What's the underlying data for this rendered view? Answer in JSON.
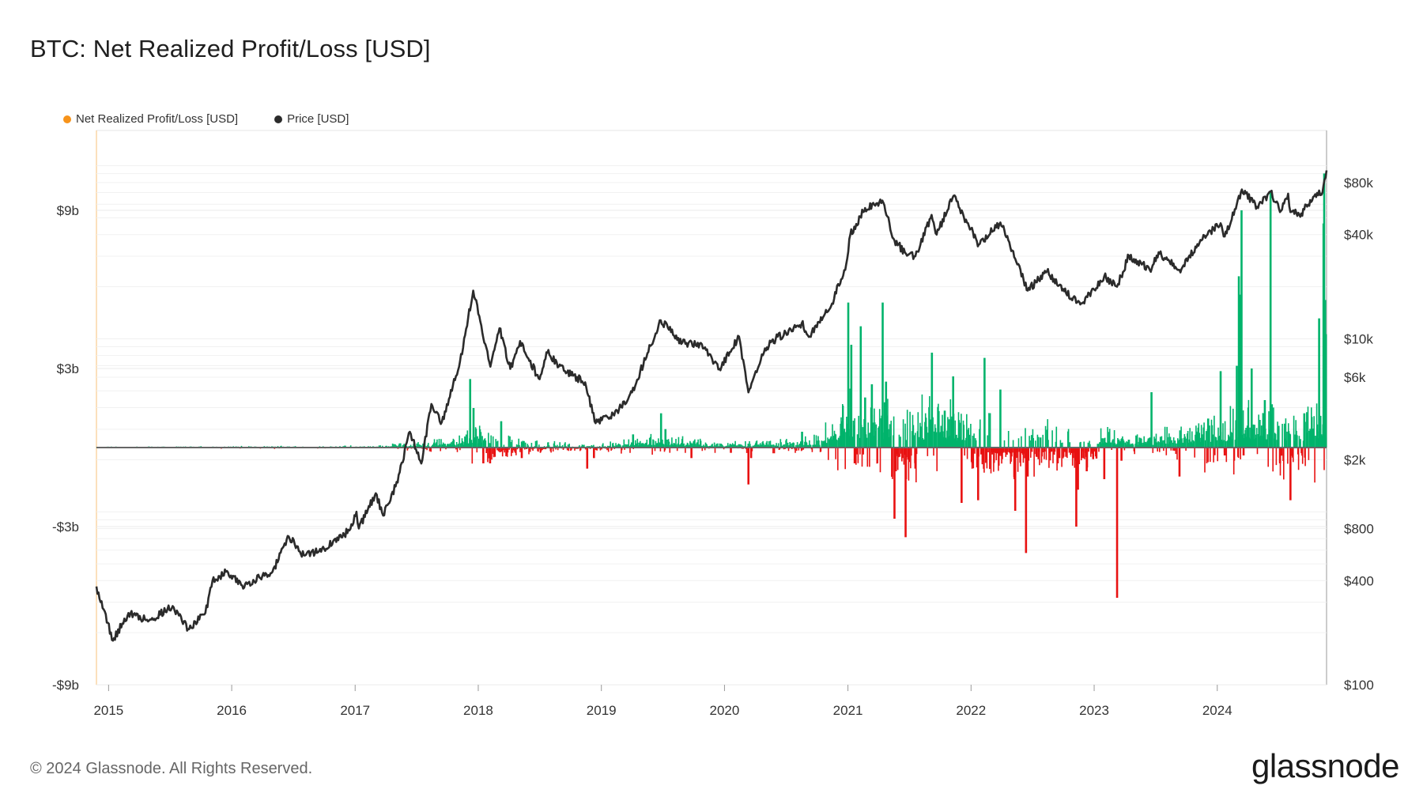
{
  "title": "BTC: Net Realized Profit/Loss [USD]",
  "legend": [
    {
      "label": "Net Realized Profit/Loss [USD]",
      "color": "#f7931a"
    },
    {
      "label": "Price [USD]",
      "color": "#2b2b2b"
    }
  ],
  "footer": "© 2024 Glassnode. All Rights Reserved.",
  "brand": "glassnode",
  "chart_data": {
    "type": "bar",
    "title": "BTC: Net Realized Profit/Loss [USD]",
    "x_range": [
      "2014-11-26",
      "2024-11-20"
    ],
    "x_ticks": [
      "2015",
      "2016",
      "2017",
      "2018",
      "2019",
      "2020",
      "2021",
      "2022",
      "2023",
      "2024"
    ],
    "left_axis": {
      "ticks": [
        9,
        3,
        -3,
        -9
      ],
      "tick_labels": [
        "$9b",
        "$3b",
        "-$3b",
        "-$9b"
      ],
      "range": [
        -9,
        12
      ],
      "unit": "billion USD"
    },
    "right_axis": {
      "scale": "log",
      "ticks": [
        100,
        400,
        800,
        2000,
        6000,
        10000,
        40000,
        80000
      ],
      "tick_labels": [
        "$100",
        "$400",
        "$800",
        "$2k",
        "$6k",
        "$10k",
        "$40k",
        "$80k"
      ],
      "range": [
        100,
        160000
      ]
    },
    "colors": {
      "profit": "#00b36b",
      "loss": "#e81111",
      "price": "#2b2b2b",
      "zero_line": "#666666"
    },
    "series": [
      {
        "name": "Price [USD]",
        "axis": "right",
        "type": "line",
        "points": [
          [
            "2014-11-26",
            370
          ],
          [
            "2015-01-14",
            180
          ],
          [
            "2015-03-01",
            260
          ],
          [
            "2015-05-01",
            235
          ],
          [
            "2015-07-10",
            285
          ],
          [
            "2015-08-25",
            210
          ],
          [
            "2015-10-15",
            260
          ],
          [
            "2015-11-05",
            400
          ],
          [
            "2015-12-15",
            450
          ],
          [
            "2016-02-01",
            375
          ],
          [
            "2016-05-01",
            450
          ],
          [
            "2016-06-18",
            720
          ],
          [
            "2016-08-02",
            560
          ],
          [
            "2016-10-01",
            610
          ],
          [
            "2016-12-15",
            780
          ],
          [
            "2017-01-05",
            1000
          ],
          [
            "2017-01-12",
            800
          ],
          [
            "2017-03-03",
            1280
          ],
          [
            "2017-03-25",
            950
          ],
          [
            "2017-05-01",
            1400
          ],
          [
            "2017-06-12",
            2900
          ],
          [
            "2017-07-16",
            1900
          ],
          [
            "2017-08-15",
            4200
          ],
          [
            "2017-09-15",
            3300
          ],
          [
            "2017-11-08",
            7400
          ],
          [
            "2017-12-17",
            19000
          ],
          [
            "2018-02-06",
            6900
          ],
          [
            "2018-03-05",
            11500
          ],
          [
            "2018-04-06",
            6700
          ],
          [
            "2018-05-05",
            9700
          ],
          [
            "2018-06-29",
            5900
          ],
          [
            "2018-07-25",
            8300
          ],
          [
            "2018-09-15",
            6500
          ],
          [
            "2018-11-14",
            5600
          ],
          [
            "2018-12-15",
            3250
          ],
          [
            "2019-02-08",
            3600
          ],
          [
            "2019-04-02",
            4900
          ],
          [
            "2019-06-26",
            12800
          ],
          [
            "2019-08-29",
            9500
          ],
          [
            "2019-10-26",
            9300
          ],
          [
            "2019-12-17",
            6700
          ],
          [
            "2020-02-13",
            10300
          ],
          [
            "2020-03-12",
            4900
          ],
          [
            "2020-04-30",
            8800
          ],
          [
            "2020-06-01",
            10000
          ],
          [
            "2020-08-17",
            12300
          ],
          [
            "2020-09-10",
            10300
          ],
          [
            "2020-11-15",
            16000
          ],
          [
            "2020-12-27",
            27000
          ],
          [
            "2021-01-08",
            40000
          ],
          [
            "2021-02-21",
            57000
          ],
          [
            "2021-04-13",
            63000
          ],
          [
            "2021-05-19",
            37000
          ],
          [
            "2021-06-22",
            31000
          ],
          [
            "2021-07-20",
            30000
          ],
          [
            "2021-09-06",
            52000
          ],
          [
            "2021-09-21",
            40000
          ],
          [
            "2021-11-10",
            67000
          ],
          [
            "2021-12-20",
            47000
          ],
          [
            "2022-01-24",
            35000
          ],
          [
            "2022-03-29",
            47000
          ],
          [
            "2022-05-12",
            29000
          ],
          [
            "2022-06-18",
            19000
          ],
          [
            "2022-08-14",
            24500
          ],
          [
            "2022-10-01",
            19400
          ],
          [
            "2022-11-21",
            15800
          ],
          [
            "2023-01-31",
            23000
          ],
          [
            "2023-03-10",
            20000
          ],
          [
            "2023-04-14",
            30300
          ],
          [
            "2023-06-15",
            25000
          ],
          [
            "2023-07-14",
            31000
          ],
          [
            "2023-09-11",
            25000
          ],
          [
            "2023-11-15",
            37000
          ],
          [
            "2024-01-11",
            46500
          ],
          [
            "2024-01-23",
            39000
          ],
          [
            "2024-03-14",
            73000
          ],
          [
            "2024-05-01",
            57000
          ],
          [
            "2024-06-07",
            71000
          ],
          [
            "2024-07-05",
            54000
          ],
          [
            "2024-07-29",
            69000
          ],
          [
            "2024-08-05",
            54000
          ],
          [
            "2024-09-06",
            53000
          ],
          [
            "2024-10-29",
            72000
          ],
          [
            "2024-11-05",
            68000
          ],
          [
            "2024-11-20",
            94000
          ]
        ]
      },
      {
        "name": "Net Realized Profit/Loss [USD]",
        "axis": "left",
        "type": "bar",
        "unit": "billion USD",
        "spikes": [
          [
            "2017-12-08",
            2.6
          ],
          [
            "2017-12-18",
            1.5
          ],
          [
            "2018-01-16",
            -0.6
          ],
          [
            "2018-02-05",
            -0.6
          ],
          [
            "2018-03-10",
            1.0
          ],
          [
            "2018-05-10",
            -0.4
          ],
          [
            "2018-11-20",
            -0.8
          ],
          [
            "2018-12-10",
            -0.4
          ],
          [
            "2019-04-05",
            0.5
          ],
          [
            "2019-06-27",
            1.3
          ],
          [
            "2019-07-10",
            0.7
          ],
          [
            "2019-09-25",
            -0.4
          ],
          [
            "2020-01-20",
            -0.2
          ],
          [
            "2020-03-12",
            -1.4
          ],
          [
            "2020-03-20",
            -0.4
          ],
          [
            "2020-08-18",
            0.6
          ],
          [
            "2020-11-25",
            0.5
          ],
          [
            "2020-12-16",
            1.0
          ],
          [
            "2021-01-02",
            5.5
          ],
          [
            "2021-01-11",
            3.9
          ],
          [
            "2021-01-21",
            -0.6
          ],
          [
            "2021-02-08",
            4.6
          ],
          [
            "2021-02-21",
            1.9
          ],
          [
            "2021-03-13",
            2.4
          ],
          [
            "2021-04-14",
            5.5
          ],
          [
            "2021-04-24",
            2.5
          ],
          [
            "2021-05-12",
            -1.1
          ],
          [
            "2021-05-19",
            -2.7
          ],
          [
            "2021-05-23",
            -0.9
          ],
          [
            "2021-06-22",
            -1.2
          ],
          [
            "2021-07-20",
            -0.8
          ],
          [
            "2021-06-21",
            -3.4
          ],
          [
            "2021-09-07",
            3.6
          ],
          [
            "2021-10-15",
            1.4
          ],
          [
            "2021-11-09",
            2.7
          ],
          [
            "2021-12-04",
            -2.1
          ],
          [
            "2022-01-22",
            -2.0
          ],
          [
            "2022-01-05",
            -0.6
          ],
          [
            "2022-02-10",
            3.4
          ],
          [
            "2022-03-29",
            2.2
          ],
          [
            "2022-05-10",
            -1.2
          ],
          [
            "2022-05-12",
            -2.4
          ],
          [
            "2022-06-13",
            -4.0
          ],
          [
            "2022-06-18",
            -1.1
          ],
          [
            "2022-07-19",
            0.4
          ],
          [
            "2022-09-15",
            -0.6
          ],
          [
            "2022-11-09",
            -3.0
          ],
          [
            "2022-11-14",
            -1.6
          ],
          [
            "2022-12-10",
            -0.9
          ],
          [
            "2023-01-31",
            -1.2
          ],
          [
            "2023-03-10",
            -5.7
          ],
          [
            "2023-03-23",
            -0.5
          ],
          [
            "2023-04-14",
            0.3
          ],
          [
            "2023-06-20",
            2.1
          ],
          [
            "2023-09-11",
            -1.1
          ],
          [
            "2023-12-05",
            1.1
          ],
          [
            "2024-01-11",
            2.9
          ],
          [
            "2024-01-23",
            -0.3
          ],
          [
            "2024-02-28",
            3.1
          ],
          [
            "2024-03-05",
            6.5
          ],
          [
            "2024-03-08",
            5.8
          ],
          [
            "2024-03-13",
            9.0
          ],
          [
            "2024-03-19",
            -0.3
          ],
          [
            "2024-04-12",
            3.0
          ],
          [
            "2024-05-21",
            1.8
          ],
          [
            "2024-06-07",
            9.7
          ],
          [
            "2024-07-05",
            -0.6
          ],
          [
            "2024-08-05",
            -2.0
          ],
          [
            "2024-09-15",
            1.3
          ],
          [
            "2024-10-29",
            4.9
          ],
          [
            "2024-11-11",
            8.5
          ],
          [
            "2024-11-13",
            10.4
          ],
          [
            "2024-11-16",
            5.6
          ],
          [
            "2024-11-18",
            4.3
          ]
        ]
      }
    ]
  }
}
